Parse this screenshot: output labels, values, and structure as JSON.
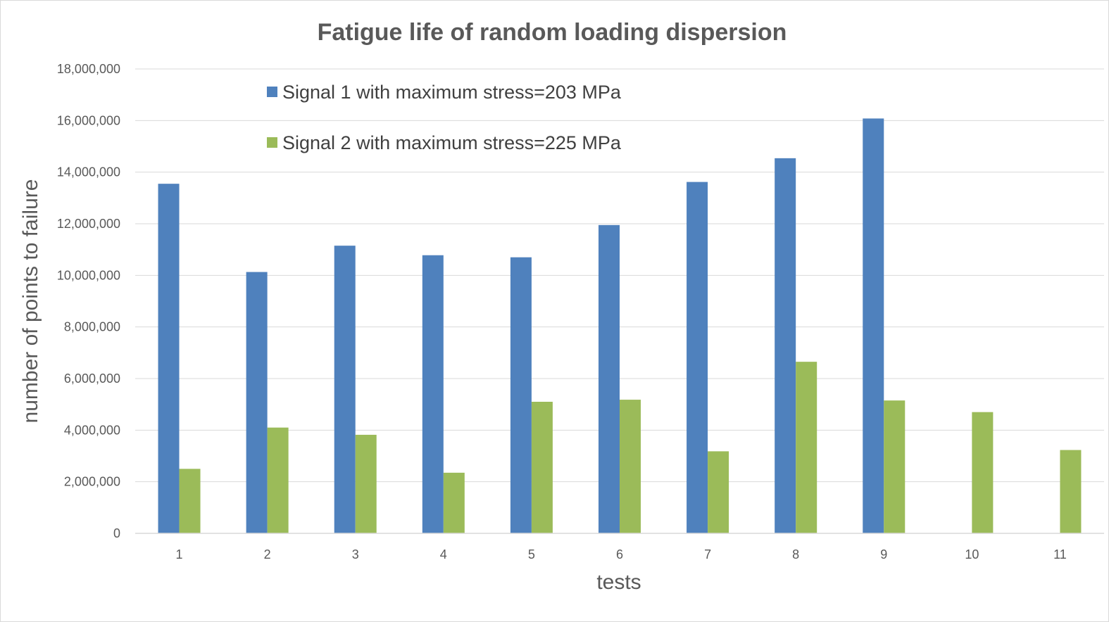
{
  "chart_data": {
    "type": "bar",
    "title": "Fatigue life of random loading dispersion",
    "xlabel": "tests",
    "ylabel": "number of points to failure",
    "categories": [
      "1",
      "2",
      "3",
      "4",
      "5",
      "6",
      "7",
      "8",
      "9",
      "10",
      "11"
    ],
    "series": [
      {
        "name": "Signal 1 with maximum stress=203 MPa",
        "color": "#4f81bd",
        "values": [
          13550000,
          10130000,
          11150000,
          10780000,
          10700000,
          11950000,
          13620000,
          14540000,
          16080000,
          null,
          null
        ]
      },
      {
        "name": "Signal 2 with maximum stress=225 MPa",
        "color": "#9bbb59",
        "values": [
          2500000,
          4100000,
          3820000,
          2350000,
          5100000,
          5180000,
          3180000,
          6650000,
          5150000,
          4700000,
          3230000
        ]
      }
    ],
    "ylim": [
      0,
      18000000
    ],
    "yticks": [
      0,
      2000000,
      4000000,
      6000000,
      8000000,
      10000000,
      12000000,
      14000000,
      16000000,
      18000000
    ],
    "ytick_labels": [
      "0",
      "2,000,000",
      "4,000,000",
      "6,000,000",
      "8,000,000",
      "10,000,000",
      "12,000,000",
      "14,000,000",
      "16,000,000",
      "18,000,000"
    ],
    "grid": true,
    "legend_position": "top-left"
  }
}
